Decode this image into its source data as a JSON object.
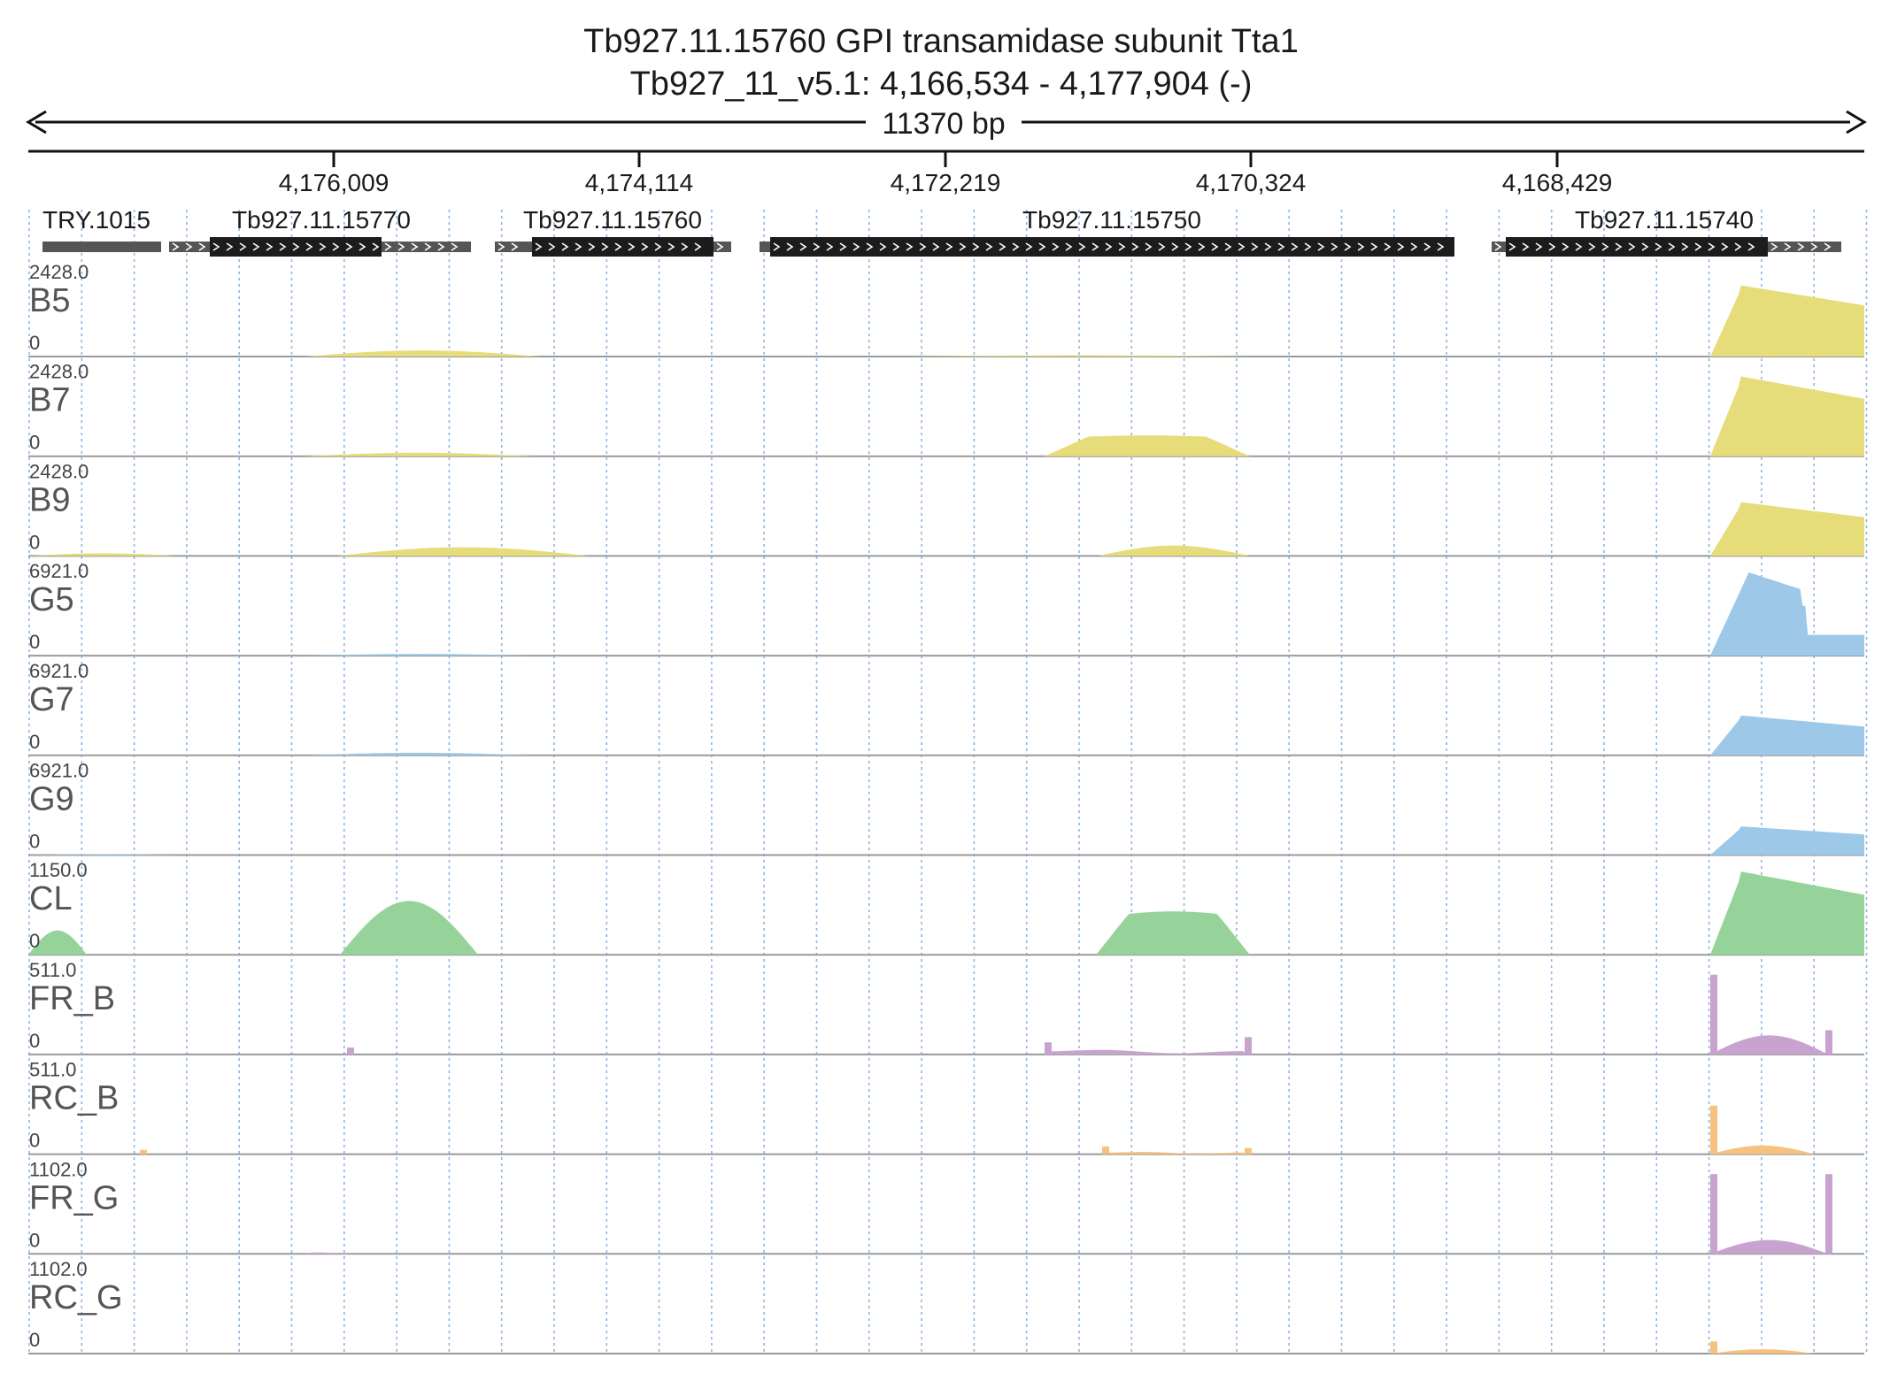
{
  "header": {
    "gene_title": "Tb927.11.15760  GPI transamidase subunit Tta1",
    "locus": "Tb927_11_v5.1: 4,166,534 - 4,177,904 (-)",
    "span_label": "11370 bp"
  },
  "ruler": {
    "ticks": [
      "4,176,009",
      "4,174,114",
      "4,172,219",
      "4,170,324",
      "4,168,429"
    ]
  },
  "genes": [
    {
      "label": "TRY.1015",
      "type": "bar"
    },
    {
      "label": "Tb927.11.15770",
      "type": "transcript"
    },
    {
      "label": "Tb927.11.15760",
      "type": "transcript"
    },
    {
      "label": "Tb927.11.15750",
      "type": "transcript"
    },
    {
      "label": "Tb927.11.15740",
      "type": "transcript"
    }
  ],
  "tracks": [
    {
      "name": "B5",
      "max": "2428.0",
      "min": "0",
      "color": "#e6dc7a"
    },
    {
      "name": "B7",
      "max": "2428.0",
      "min": "0",
      "color": "#e6dc7a"
    },
    {
      "name": "B9",
      "max": "2428.0",
      "min": "0",
      "color": "#e6dc7a"
    },
    {
      "name": "G5",
      "max": "6921.0",
      "min": "0",
      "color": "#9dc8e8"
    },
    {
      "name": "G7",
      "max": "6921.0",
      "min": "0",
      "color": "#9dc8e8"
    },
    {
      "name": "G9",
      "max": "6921.0",
      "min": "0",
      "color": "#9dc8e8"
    },
    {
      "name": "CL",
      "max": "1150.0",
      "min": "0",
      "color": "#96d39a"
    },
    {
      "name": "FR_B",
      "max": "511.0",
      "min": "0",
      "color": "#c9a3cf"
    },
    {
      "name": "RC_B",
      "max": "511.0",
      "min": "0",
      "color": "#f7c27e"
    },
    {
      "name": "FR_G",
      "max": "1102.0",
      "min": "0",
      "color": "#c9a3cf"
    },
    {
      "name": "RC_G",
      "max": "1102.0",
      "min": "0",
      "color": "#f7c27e"
    }
  ],
  "colors": {
    "grid": "#8fb6e0",
    "feature": "#1c1c1c",
    "feature_dim": "#555555"
  }
}
